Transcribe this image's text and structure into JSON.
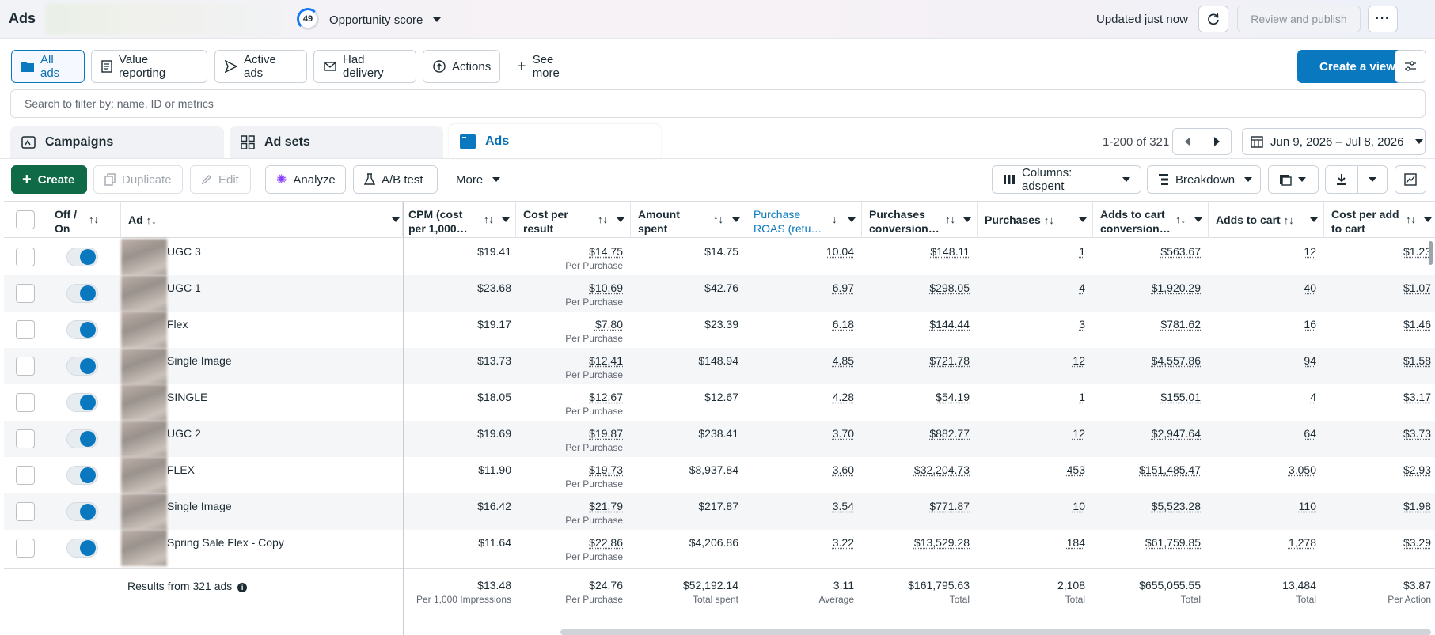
{
  "app_title": "Ads",
  "opportunity": {
    "score": "49",
    "label": "Opportunity score"
  },
  "header": {
    "updated": "Updated just now",
    "review_publish": "Review and publish",
    "more": "···"
  },
  "views": [
    {
      "label": "All ads",
      "icon": "folder-icon",
      "active": true
    },
    {
      "label": "Value reporting",
      "icon": "report-icon"
    },
    {
      "label": "Active ads",
      "icon": "send-icon"
    },
    {
      "label": "Had delivery",
      "icon": "mail-icon"
    },
    {
      "label": "Actions",
      "icon": "action-icon"
    },
    {
      "label": "See more",
      "icon": "plus-icon"
    }
  ],
  "create_view": "Create a view",
  "search": {
    "placeholder": "Search to filter by: name, ID or metrics"
  },
  "level_tabs": [
    {
      "label": "Campaigns",
      "icon": "campaign-icon"
    },
    {
      "label": "Ad sets",
      "icon": "grid-icon"
    },
    {
      "label": "Ads",
      "icon": "ad-icon",
      "active": true
    }
  ],
  "pager": {
    "range": "1-200 of 321"
  },
  "date_range": "Jun 9, 2026 – Jul 8, 2026",
  "toolbar": {
    "create": "Create",
    "duplicate": "Duplicate",
    "edit": "Edit",
    "analyze": "Analyze",
    "ab_test": "A/B test",
    "more": "More",
    "columns": "Columns: adspent",
    "breakdown": "Breakdown"
  },
  "columns": {
    "off_on": "Off / On",
    "ad": "Ad",
    "cpm": "CPM (cost per 1,000…",
    "cost_per_result": "Cost per result",
    "amount_spent": "Amount spent",
    "roas": "Purchase ROAS (retu…",
    "purchases_conv": "Purchases conversion…",
    "purchases": "Purchases",
    "atc_conv": "Adds to cart conversion…",
    "atc": "Adds to cart",
    "cost_per_atc": "Cost per add to cart"
  },
  "rows": [
    {
      "name": "UGC 3",
      "cpm": "$19.41",
      "cpr": "$14.75",
      "cpr_sub": "Per Purchase",
      "spent": "$14.75",
      "roas": "10.04",
      "pconv": "$148.11",
      "purchases": "1",
      "atcconv": "$563.67",
      "atc": "12",
      "cpatc": "$1.23"
    },
    {
      "name": "UGC 1",
      "cpm": "$23.68",
      "cpr": "$10.69",
      "cpr_sub": "Per Purchase",
      "spent": "$42.76",
      "roas": "6.97",
      "pconv": "$298.05",
      "purchases": "4",
      "atcconv": "$1,920.29",
      "atc": "40",
      "cpatc": "$1.07"
    },
    {
      "name": "Flex",
      "cpm": "$19.17",
      "cpr": "$7.80",
      "cpr_sub": "Per Purchase",
      "spent": "$23.39",
      "roas": "6.18",
      "pconv": "$144.44",
      "purchases": "3",
      "atcconv": "$781.62",
      "atc": "16",
      "cpatc": "$1.46"
    },
    {
      "name": "Single Image",
      "cpm": "$13.73",
      "cpr": "$12.41",
      "cpr_sub": "Per Purchase",
      "spent": "$148.94",
      "roas": "4.85",
      "pconv": "$721.78",
      "purchases": "12",
      "atcconv": "$4,557.86",
      "atc": "94",
      "cpatc": "$1.58"
    },
    {
      "name": "SINGLE",
      "cpm": "$18.05",
      "cpr": "$12.67",
      "cpr_sub": "Per Purchase",
      "spent": "$12.67",
      "roas": "4.28",
      "pconv": "$54.19",
      "purchases": "1",
      "atcconv": "$155.01",
      "atc": "4",
      "cpatc": "$3.17"
    },
    {
      "name": "UGC 2",
      "cpm": "$19.69",
      "cpr": "$19.87",
      "cpr_sub": "Per Purchase",
      "spent": "$238.41",
      "roas": "3.70",
      "pconv": "$882.77",
      "purchases": "12",
      "atcconv": "$2,947.64",
      "atc": "64",
      "cpatc": "$3.73"
    },
    {
      "name": "FLEX",
      "cpm": "$11.90",
      "cpr": "$19.73",
      "cpr_sub": "Per Purchase",
      "spent": "$8,937.84",
      "roas": "3.60",
      "pconv": "$32,204.73",
      "purchases": "453",
      "atcconv": "$151,485.47",
      "atc": "3,050",
      "cpatc": "$2.93"
    },
    {
      "name": "Single Image",
      "cpm": "$16.42",
      "cpr": "$21.79",
      "cpr_sub": "Per Purchase",
      "spent": "$217.87",
      "roas": "3.54",
      "pconv": "$771.87",
      "purchases": "10",
      "atcconv": "$5,523.28",
      "atc": "110",
      "cpatc": "$1.98"
    },
    {
      "name": "Spring Sale Flex - Copy",
      "cpm": "$11.64",
      "cpr": "$22.86",
      "cpr_sub": "Per Purchase",
      "spent": "$4,206.86",
      "roas": "3.22",
      "pconv": "$13,529.28",
      "purchases": "184",
      "atcconv": "$61,759.85",
      "atc": "1,278",
      "cpatc": "$3.29"
    }
  ],
  "totals": {
    "label": "Results from 321 ads",
    "cpm": "$13.48",
    "cpm_sub": "Per 1,000 Impressions",
    "cpr": "$24.76",
    "cpr_sub": "Per Purchase",
    "spent": "$52,192.14",
    "spent_sub": "Total spent",
    "roas": "3.11",
    "roas_sub": "Average",
    "pconv": "$161,795.63",
    "pconv_sub": "Total",
    "purchases": "2,108",
    "purchases_sub": "Total",
    "atcconv": "$655,055.55",
    "atcconv_sub": "Total",
    "atc": "13,484",
    "atc_sub": "Total",
    "cpatc": "$3.87",
    "cpatc_sub": "Per Action"
  },
  "colors": {
    "accent": "#0a78be",
    "create_green": "#0f6b47"
  }
}
